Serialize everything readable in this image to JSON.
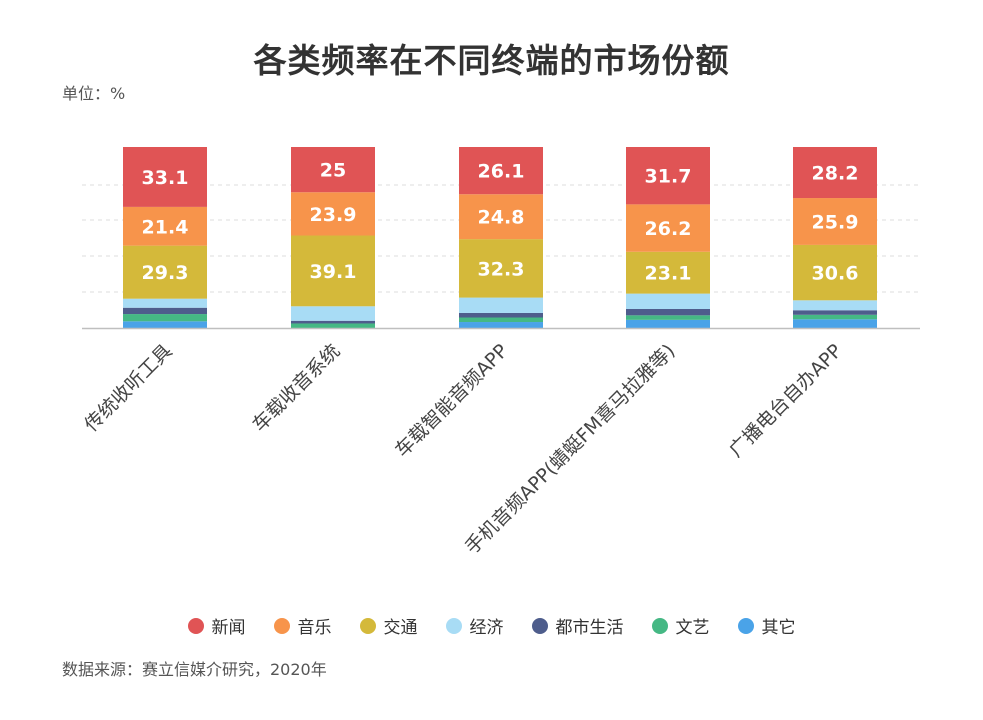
{
  "chart_data": {
    "type": "bar",
    "stacked": true,
    "title": "各类频率在不同终端的市场份额",
    "unit_label": "单位：%",
    "categories": [
      "传统收听工具",
      "车载收音系统",
      "车载智能音频APP",
      "手机音频APP(蜻蜓FM喜马拉雅等)",
      "广播电台自办APP"
    ],
    "series": [
      {
        "name": "新闻",
        "color": "#e05455",
        "values": [
          33.1,
          25,
          26.1,
          31.7,
          28.2
        ]
      },
      {
        "name": "音乐",
        "color": "#f7944b",
        "values": [
          21.4,
          23.9,
          24.8,
          26.2,
          25.9
        ]
      },
      {
        "name": "交通",
        "color": "#d4b93a",
        "values": [
          29.3,
          39.1,
          32.3,
          23.1,
          30.6
        ]
      },
      {
        "name": "经济",
        "color": "#a8dcf5",
        "values": [
          5,
          8,
          8.5,
          8.5,
          5.5
        ]
      },
      {
        "name": "都市生活",
        "color": "#4e5d8c",
        "values": [
          3.5,
          1.5,
          2.5,
          3.5,
          2.5
        ]
      },
      {
        "name": "文艺",
        "color": "#45b884",
        "values": [
          4,
          2.5,
          2.5,
          2.5,
          2.5
        ]
      },
      {
        "name": "其它",
        "color": "#4aa3e8",
        "values": [
          3.7,
          0,
          3.3,
          4.5,
          4.8
        ]
      }
    ],
    "labeled_series": [
      "新闻",
      "音乐",
      "交通"
    ],
    "ylim": [
      0,
      100
    ],
    "grid": true,
    "legend_position": "bottom"
  },
  "source_note": "数据来源：赛立信媒介研究，2020年"
}
